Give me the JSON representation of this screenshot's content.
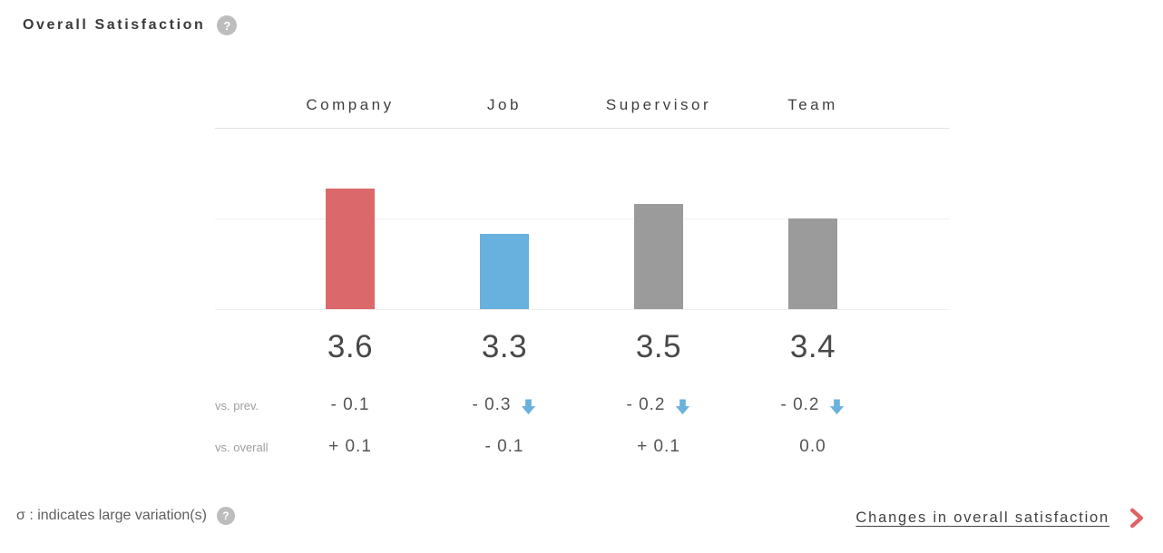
{
  "header": {
    "title": "Overall Satisfaction"
  },
  "icons": {
    "help": "?"
  },
  "chart_data": {
    "type": "bar",
    "title": "Overall Satisfaction",
    "categories": [
      "Company",
      "Job",
      "Supervisor",
      "Team"
    ],
    "values": [
      3.6,
      3.3,
      3.5,
      3.4
    ],
    "value_labels": [
      "3.6",
      "3.3",
      "3.5",
      "3.4"
    ],
    "bar_colors": [
      "#db696c",
      "#68b0de",
      "#9b9b9b",
      "#9b9b9b"
    ],
    "ylim": [
      2.8,
      4.0
    ],
    "gridlines": [
      2.8,
      3.4,
      4.0
    ],
    "grid_on": true,
    "legend": "none",
    "comparison_rows": [
      {
        "label": "vs. prev.",
        "values": [
          "- 0.1",
          "- 0.3",
          "- 0.2",
          "- 0.2"
        ],
        "down_arrows": [
          false,
          true,
          true,
          true
        ]
      },
      {
        "label": "vs. overall",
        "values": [
          "+ 0.1",
          "- 0.1",
          "+ 0.1",
          "0.0"
        ],
        "down_arrows": [
          false,
          false,
          false,
          false
        ]
      }
    ]
  },
  "footer": {
    "sigma_note": "σ : indicates large variation(s)",
    "link_label": "Changes in overall satisfaction"
  },
  "colors": {
    "accent_red": "#db696c",
    "accent_blue": "#68b0de",
    "neutral_bar": "#9b9b9b",
    "arrow_blue": "#6bb1dd",
    "chevron_red": "#e06465"
  }
}
